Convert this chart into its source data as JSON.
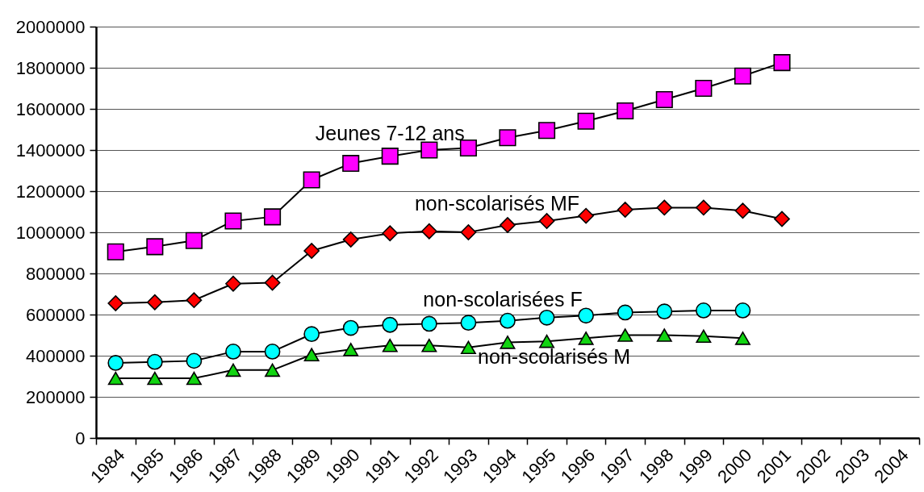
{
  "chart_data": {
    "type": "line",
    "categories": [
      "1984",
      "1985",
      "1986",
      "1987",
      "1988",
      "1989",
      "1990",
      "1991",
      "1992",
      "1993",
      "1994",
      "1995",
      "1996",
      "1997",
      "1998",
      "1999",
      "2000",
      "2001",
      "2002",
      "2003",
      "2004"
    ],
    "series": [
      {
        "name": "Jeunes 7-12 ans",
        "color": "#ff00ff",
        "marker": "square",
        "values": [
          905000,
          930000,
          960000,
          1055000,
          1075000,
          1255000,
          1335000,
          1370000,
          1400000,
          1410000,
          1460000,
          1495000,
          1540000,
          1590000,
          1645000,
          1700000,
          1760000,
          1825000,
          null,
          null,
          null
        ]
      },
      {
        "name": "non-scolarisés MF",
        "color": "#ff0000",
        "marker": "diamond",
        "values": [
          655000,
          660000,
          670000,
          750000,
          755000,
          910000,
          965000,
          995000,
          1005000,
          1000000,
          1035000,
          1055000,
          1080000,
          1110000,
          1120000,
          1120000,
          1105000,
          1065000,
          null,
          null,
          null
        ]
      },
      {
        "name": "non-scolarisées F",
        "color": "#00ffff",
        "marker": "circle",
        "values": [
          365000,
          370000,
          375000,
          420000,
          420000,
          505000,
          535000,
          550000,
          555000,
          560000,
          570000,
          585000,
          595000,
          610000,
          615000,
          620000,
          620000,
          null,
          null,
          null,
          null
        ]
      },
      {
        "name": "non-scolarisés M",
        "color": "#11d411",
        "marker": "triangle",
        "values": [
          290000,
          290000,
          290000,
          330000,
          330000,
          405000,
          430000,
          450000,
          450000,
          440000,
          465000,
          470000,
          485000,
          500000,
          500000,
          495000,
          485000,
          null,
          null,
          null,
          null
        ]
      }
    ],
    "ylim": [
      0,
      2000000
    ],
    "yticks": [
      0,
      200000,
      400000,
      600000,
      800000,
      1000000,
      1200000,
      1400000,
      1600000,
      1800000,
      2000000
    ],
    "grid": "y",
    "legend": false
  }
}
